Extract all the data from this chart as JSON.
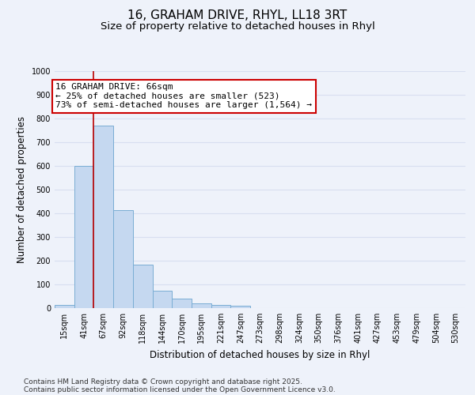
{
  "title_line1": "16, GRAHAM DRIVE, RHYL, LL18 3RT",
  "title_line2": "Size of property relative to detached houses in Rhyl",
  "xlabel": "Distribution of detached houses by size in Rhyl",
  "ylabel": "Number of detached properties",
  "categories": [
    "15sqm",
    "41sqm",
    "67sqm",
    "92sqm",
    "118sqm",
    "144sqm",
    "170sqm",
    "195sqm",
    "221sqm",
    "247sqm",
    "273sqm",
    "298sqm",
    "324sqm",
    "350sqm",
    "376sqm",
    "401sqm",
    "427sqm",
    "453sqm",
    "479sqm",
    "504sqm",
    "530sqm"
  ],
  "values": [
    15,
    600,
    770,
    415,
    185,
    75,
    40,
    20,
    15,
    10,
    0,
    0,
    0,
    0,
    0,
    0,
    0,
    0,
    0,
    0,
    0
  ],
  "bar_color": "#c5d8f0",
  "bar_edge_color": "#7aadd4",
  "background_color": "#eef2fa",
  "grid_color": "#d8dff0",
  "vline_x_idx": 2,
  "vline_color": "#bb0000",
  "annotation_line1": "16 GRAHAM DRIVE: 66sqm",
  "annotation_line2": "← 25% of detached houses are smaller (523)",
  "annotation_line3": "73% of semi-detached houses are larger (1,564) →",
  "annotation_box_color": "#cc0000",
  "annotation_fill": "#ffffff",
  "ylim": [
    0,
    1000
  ],
  "yticks": [
    0,
    100,
    200,
    300,
    400,
    500,
    600,
    700,
    800,
    900,
    1000
  ],
  "footer_line1": "Contains HM Land Registry data © Crown copyright and database right 2025.",
  "footer_line2": "Contains public sector information licensed under the Open Government Licence v3.0.",
  "title_fontsize": 11,
  "subtitle_fontsize": 9.5,
  "tick_fontsize": 7,
  "ylabel_fontsize": 8.5,
  "xlabel_fontsize": 8.5,
  "annotation_fontsize": 8,
  "footer_fontsize": 6.5
}
